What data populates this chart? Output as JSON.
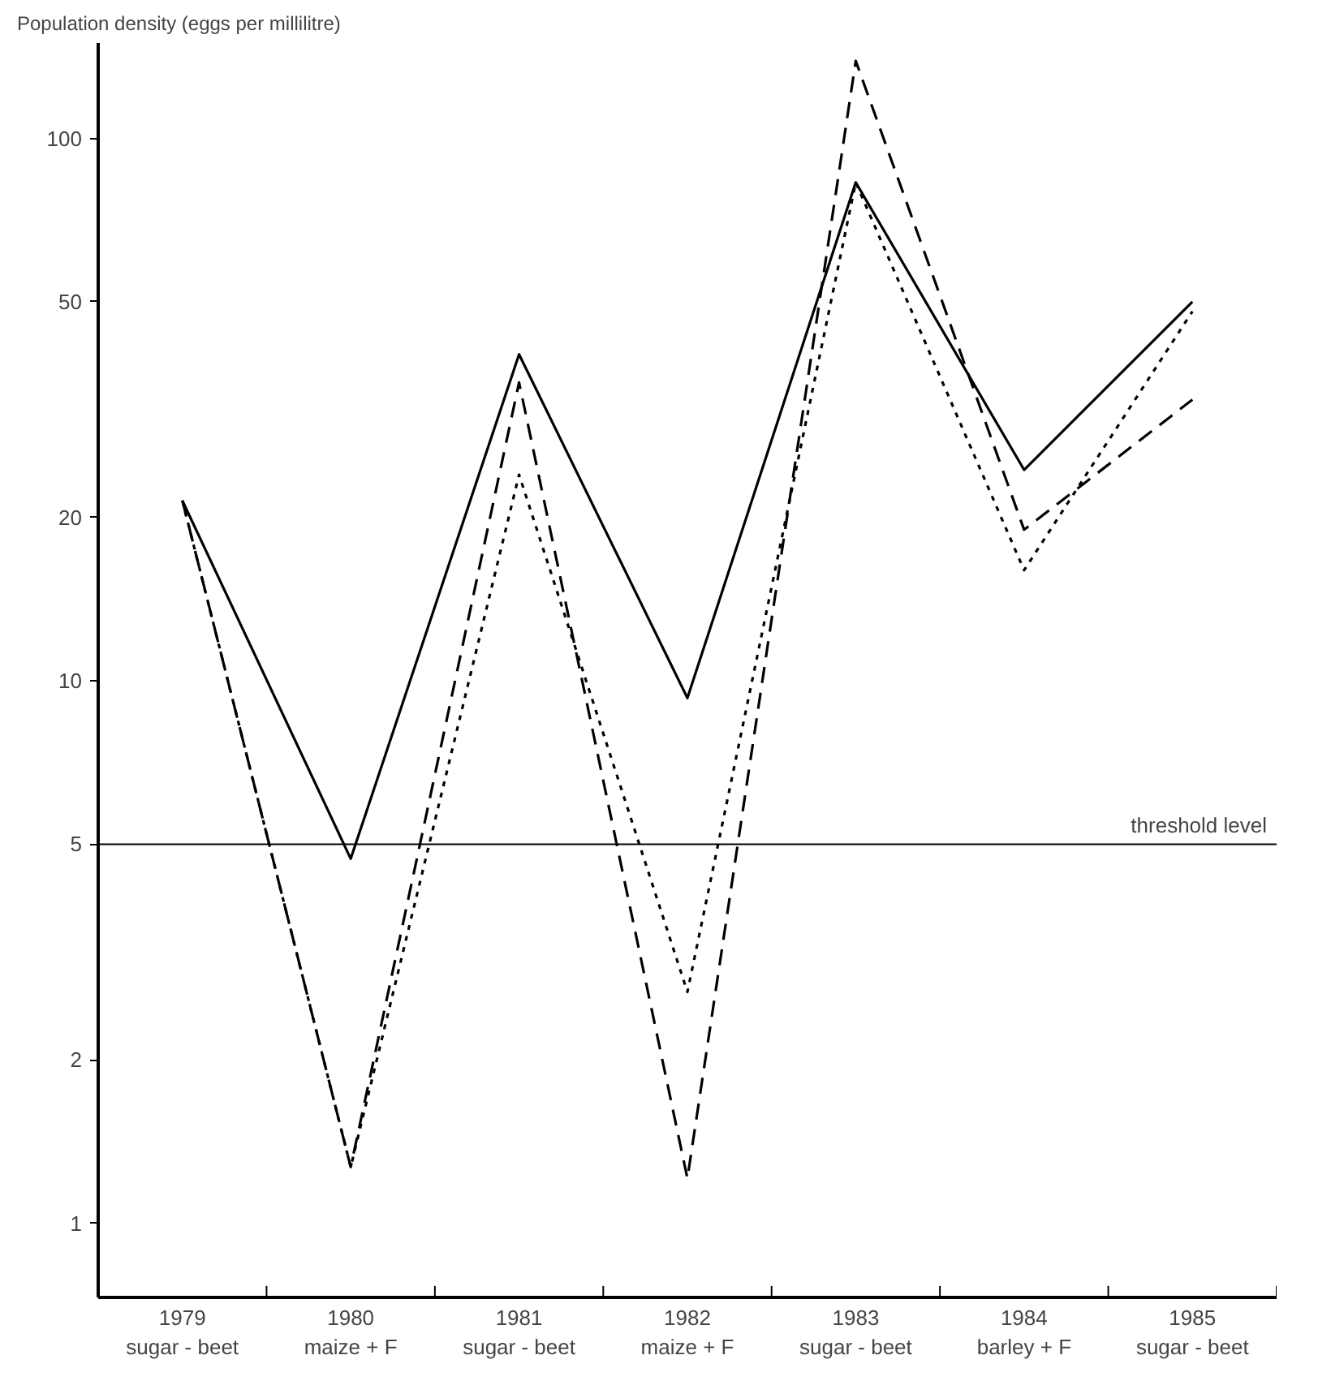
{
  "chart_data": {
    "type": "line",
    "ylabel": "Population density (eggs per millilitre)",
    "categories": [
      "1979\nsugar - beet",
      "1980\nmaize + F",
      "1981\nsugar - beet",
      "1982\nmaize + F",
      "1983\nsugar - beet",
      "1984\nbarley + F",
      "1985\nsugar - beet"
    ],
    "series": [
      {
        "color": "#000000",
        "line_style": "solid",
        "values": [
          21.5,
          4.7,
          40,
          9.3,
          83,
          24.5,
          50
        ]
      },
      {
        "color": "#000000",
        "line_style": "dashed",
        "values": [
          21.5,
          1.27,
          35.5,
          1.21,
          139,
          19,
          33
        ]
      },
      {
        "color": "#000000",
        "line_style": "dotted",
        "values": [
          21.5,
          1.27,
          24,
          2.67,
          83,
          16,
          48
        ]
      }
    ],
    "log": true,
    "ylim": [
      0.73,
      150
    ],
    "yticks": [
      1,
      2,
      5,
      10,
      20,
      50,
      100
    ],
    "ref_lines": [
      {
        "axis": "y",
        "value": 5,
        "label": "threshold level",
        "color": "#000000"
      }
    ],
    "grid": false
  }
}
